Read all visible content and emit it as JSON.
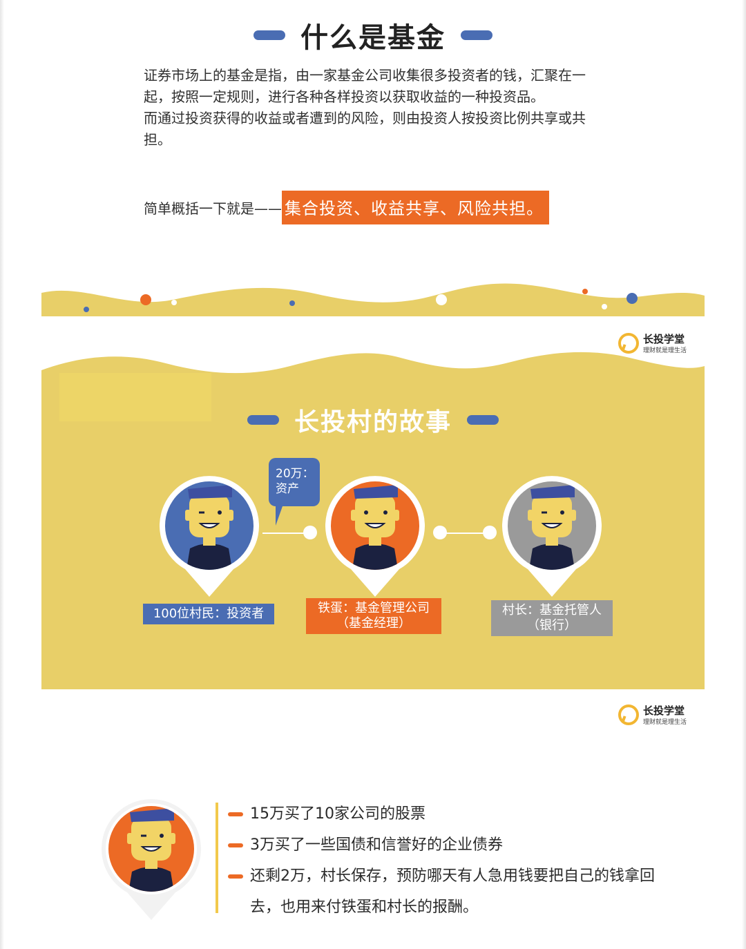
{
  "section1": {
    "title": "什么是基金",
    "paragraphs": [
      "证券市场上的基金是指，由一家基金公司收集很多投资者的钱，汇聚在一起，按照一定规则，进行各种各样投资以获取收益的一种投资品。",
      "而通过投资获得的收益或者遭到的风险，则由投资人按投资比例共享或共担。"
    ],
    "summary_lead": "简单概括一下就是——",
    "summary_highlight": "集合投资、收益共享、风险共担。"
  },
  "logo": {
    "name": "长投学堂",
    "slogan": "理财就是理生活"
  },
  "section2": {
    "title": "长投村的故事",
    "bubble_line1": "20万：",
    "bubble_line2": "资产",
    "roles": {
      "villagers": "100位村民：投资者",
      "tiedan_line1": "铁蛋：基金管理公司",
      "tiedan_line2": "（基金经理）",
      "chief_line1": "村长：基金托管人",
      "chief_line2": "（银行）"
    }
  },
  "allocation": {
    "items": [
      "15万买了10家公司的股票",
      "3万买了一些国债和信誉好的企业债券",
      "还剩2万，村长保存，预防哪天有人急用钱要把自己的钱拿回去，也用来付铁蛋和村长的报酬。"
    ]
  },
  "colors": {
    "blue": "#4a6db3",
    "orange": "#ec6a25",
    "gray": "#9a9a9a",
    "yellow": "#e8cf68",
    "navy": "#1b2140"
  }
}
